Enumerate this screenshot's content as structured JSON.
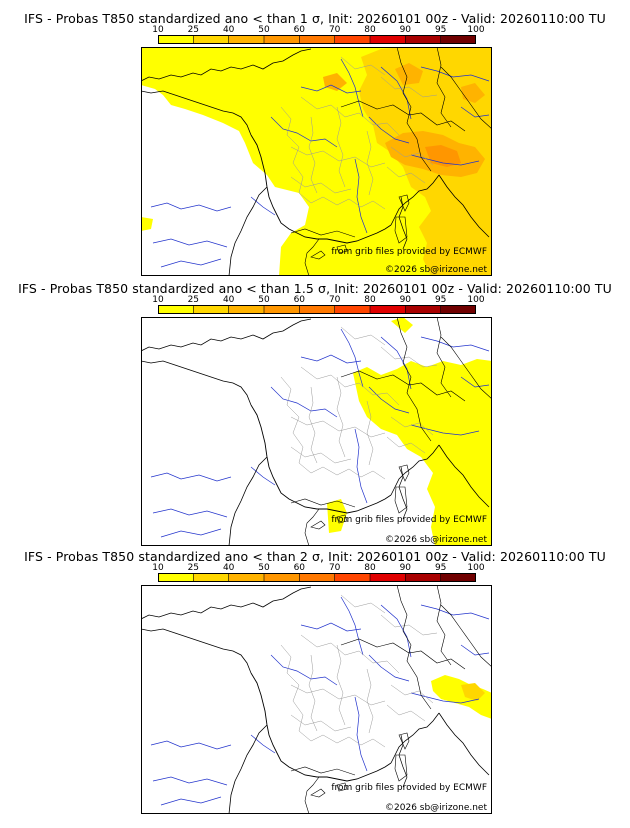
{
  "scale": {
    "ticks": [
      "10",
      "25",
      "40",
      "50",
      "60",
      "70",
      "80",
      "90",
      "95",
      "100"
    ],
    "colors": [
      "#ffff00",
      "#ffd700",
      "#ffb300",
      "#ff9600",
      "#ff7800",
      "#ff4500",
      "#e00000",
      "#a80000",
      "#700000"
    ]
  },
  "credits": {
    "source": "from grib files provided by ECMWF",
    "copyright": "©2026 sb@irizone.net"
  },
  "panels": [
    {
      "title": "IFS - Probas T850  standardized ano < than 1 σ, Init: 20260101 00z - Valid: 20260110:00 TU"
    },
    {
      "title": "IFS - Probas T850  standardized ano < than 1.5 σ, Init: 20260101 00z - Valid: 20260110:00 TU"
    },
    {
      "title": "IFS - Probas T850  standardized ano < than 2 σ, Init: 20260101 00z - Valid: 20260110:00 TU"
    }
  ]
}
